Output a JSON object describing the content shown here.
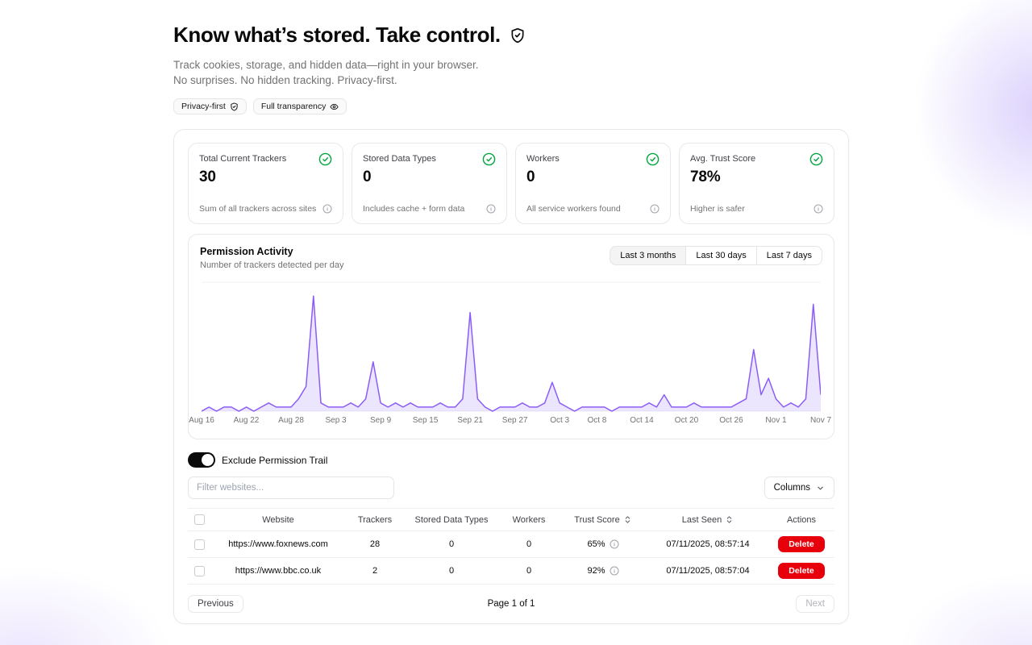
{
  "header": {
    "title": "Know what’s stored. Take control.",
    "subtitle_line1": "Track cookies, storage, and hidden data—right in your browser.",
    "subtitle_line2": "No surprises. No hidden tracking. Privacy-first.",
    "badges": [
      {
        "label": "Privacy-first",
        "icon": "shield-check-icon"
      },
      {
        "label": "Full transparency",
        "icon": "eye-icon"
      }
    ]
  },
  "stats": [
    {
      "label": "Total Current Trackers",
      "value": "30",
      "description": "Sum of all trackers across sites",
      "icon": "circle-check-icon",
      "icon_color": "#00a63e"
    },
    {
      "label": "Stored Data Types",
      "value": "0",
      "description": "Includes cache + form data",
      "icon": "circle-check-icon",
      "icon_color": "#00a63e"
    },
    {
      "label": "Workers",
      "value": "0",
      "description": "All service workers found",
      "icon": "circle-check-icon",
      "icon_color": "#00a63e"
    },
    {
      "label": "Avg. Trust Score",
      "value": "78%",
      "description": "Higher is safer",
      "icon": "circle-check-icon",
      "icon_color": "#00a63e"
    }
  ],
  "chart": {
    "title": "Permission Activity",
    "subtitle": "Number of trackers detected per day",
    "ranges": [
      {
        "label": "Last 3 months",
        "active": true
      },
      {
        "label": "Last 30 days",
        "active": false
      },
      {
        "label": "Last 7 days",
        "active": false
      }
    ]
  },
  "chart_data": {
    "type": "area",
    "title": "Permission Activity",
    "ylabel": "Trackers detected per day",
    "ylim": [
      0,
      30
    ],
    "line_color": "#8b5cf6",
    "fill_color": "rgba(139,92,246,0.16)",
    "start_date": "Aug 16",
    "end_date": "Nov 7",
    "x_tick_labels": [
      "Aug 16",
      "Aug 22",
      "Aug 28",
      "Sep 3",
      "Sep 9",
      "Sep 15",
      "Sep 21",
      "Sep 27",
      "Oct 3",
      "Oct 8",
      "Oct 14",
      "Oct 20",
      "Oct 26",
      "Nov 1",
      "Nov 7"
    ],
    "x_tick_days": [
      0,
      6,
      12,
      18,
      24,
      30,
      36,
      42,
      48,
      53,
      59,
      65,
      71,
      77,
      83
    ],
    "values_by_day": [
      0,
      1,
      0,
      1,
      1,
      0,
      1,
      0,
      1,
      2,
      1,
      1,
      1,
      3,
      6,
      28,
      2,
      1,
      1,
      1,
      2,
      1,
      3,
      12,
      2,
      1,
      2,
      1,
      2,
      1,
      1,
      1,
      2,
      1,
      1,
      3,
      24,
      3,
      1,
      0,
      1,
      1,
      1,
      2,
      1,
      1,
      2,
      7,
      2,
      1,
      0,
      1,
      1,
      1,
      1,
      0,
      1,
      1,
      1,
      1,
      2,
      1,
      4,
      1,
      1,
      1,
      2,
      1,
      1,
      1,
      1,
      1,
      2,
      3,
      15,
      4,
      8,
      3,
      1,
      2,
      1,
      3,
      26,
      4
    ]
  },
  "controls": {
    "toggle_label": "Exclude Permission Trail",
    "toggle_on": true,
    "filter_placeholder": "Filter websites...",
    "columns_button": "Columns"
  },
  "table": {
    "headers": {
      "website": "Website",
      "trackers": "Trackers",
      "stored": "Stored Data Types",
      "workers": "Workers",
      "trust": "Trust Score",
      "last_seen": "Last Seen",
      "actions": "Actions"
    },
    "rows": [
      {
        "website": "https://www.foxnews.com",
        "trackers": "28",
        "stored_data_types": "0",
        "workers": "0",
        "trust_score": "65%",
        "last_seen": "07/11/2025, 08:57:14",
        "action": "Delete"
      },
      {
        "website": "https://www.bbc.co.uk",
        "trackers": "2",
        "stored_data_types": "0",
        "workers": "0",
        "trust_score": "92%",
        "last_seen": "07/11/2025, 08:57:04",
        "action": "Delete"
      }
    ]
  },
  "pagination": {
    "previous": "Previous",
    "info": "Page 1 of 1",
    "next": "Next"
  }
}
